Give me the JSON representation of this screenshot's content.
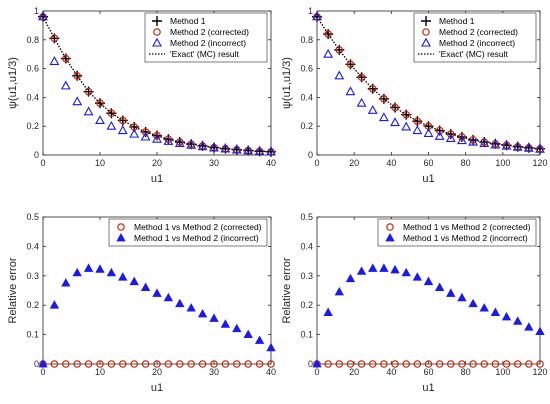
{
  "colors": {
    "method1": "#000000",
    "method2_corrected": "#cc2200",
    "method2_incorrect": "#1a1aee",
    "exact": "#000000",
    "axis": "#262626"
  },
  "chart_data": [
    {
      "type": "scatter",
      "xlabel": "u1",
      "ylabel": "ψ(u1,u1/3)",
      "xlim": [
        0,
        40
      ],
      "ylim": [
        0,
        1
      ],
      "xticks": [
        "0",
        "10",
        "20",
        "30",
        "40"
      ],
      "yticks": [
        "0",
        "0.2",
        "0.4",
        "0.6",
        "0.8",
        "1"
      ],
      "legend_position": "top-right",
      "legend": [
        "Method 1",
        "Method 2 (corrected)",
        "Method 2 (incorrect)",
        "'Exact' (MC) result"
      ],
      "series": [
        {
          "name": "Method 1",
          "marker": "plus",
          "x": [
            0,
            2,
            4,
            6,
            8,
            10,
            12,
            14,
            16,
            18,
            20,
            22,
            24,
            26,
            28,
            30,
            32,
            34,
            36,
            38,
            40
          ],
          "y": [
            0.96,
            0.81,
            0.67,
            0.55,
            0.44,
            0.36,
            0.29,
            0.24,
            0.195,
            0.16,
            0.135,
            0.11,
            0.09,
            0.075,
            0.063,
            0.052,
            0.044,
            0.037,
            0.031,
            0.026,
            0.022
          ]
        },
        {
          "name": "Method 2 (corrected)",
          "marker": "circle",
          "x": [
            0,
            2,
            4,
            6,
            8,
            10,
            12,
            14,
            16,
            18,
            20,
            22,
            24,
            26,
            28,
            30,
            32,
            34,
            36,
            38,
            40
          ],
          "y": [
            0.96,
            0.81,
            0.67,
            0.55,
            0.44,
            0.36,
            0.29,
            0.24,
            0.195,
            0.16,
            0.135,
            0.11,
            0.09,
            0.075,
            0.063,
            0.052,
            0.044,
            0.037,
            0.031,
            0.026,
            0.022
          ]
        },
        {
          "name": "Method 2 (incorrect)",
          "marker": "triangle",
          "x": [
            0,
            2,
            4,
            6,
            8,
            10,
            12,
            14,
            16,
            18,
            20,
            22,
            24,
            26,
            28,
            30,
            32,
            34,
            36,
            38,
            40
          ],
          "y": [
            0.96,
            0.65,
            0.48,
            0.37,
            0.3,
            0.24,
            0.2,
            0.17,
            0.145,
            0.125,
            0.11,
            0.095,
            0.08,
            0.068,
            0.058,
            0.049,
            0.042,
            0.035,
            0.03,
            0.025,
            0.021
          ]
        },
        {
          "name": "'Exact' (MC) result",
          "marker": "line",
          "x": [
            0,
            2,
            4,
            6,
            8,
            10,
            12,
            14,
            16,
            18,
            20,
            22,
            24,
            26,
            28,
            30,
            32,
            34,
            36,
            38,
            40
          ],
          "y": [
            0.96,
            0.81,
            0.67,
            0.55,
            0.44,
            0.36,
            0.29,
            0.24,
            0.195,
            0.16,
            0.135,
            0.11,
            0.09,
            0.075,
            0.063,
            0.052,
            0.044,
            0.037,
            0.031,
            0.026,
            0.022
          ]
        }
      ]
    },
    {
      "type": "scatter",
      "xlabel": "u1",
      "ylabel": "ψ(u1,u1/3)",
      "xlim": [
        0,
        120
      ],
      "ylim": [
        0,
        1
      ],
      "xticks": [
        "0",
        "20",
        "40",
        "60",
        "80",
        "100",
        "120"
      ],
      "yticks": [
        "0",
        "0.2",
        "0.4",
        "0.6",
        "0.8",
        "1"
      ],
      "legend_position": "top-right",
      "legend": [
        "Method 1",
        "Method 2 (corrected)",
        "Method 2 (incorrect)",
        "'Exact' (MC) result"
      ],
      "series": [
        {
          "name": "Method 1",
          "marker": "plus",
          "x": [
            0,
            6,
            12,
            18,
            24,
            30,
            36,
            42,
            48,
            54,
            60,
            66,
            72,
            78,
            84,
            90,
            96,
            102,
            108,
            114,
            120
          ],
          "y": [
            0.96,
            0.84,
            0.73,
            0.63,
            0.54,
            0.46,
            0.39,
            0.33,
            0.28,
            0.235,
            0.2,
            0.17,
            0.145,
            0.125,
            0.105,
            0.09,
            0.078,
            0.068,
            0.058,
            0.05,
            0.043
          ]
        },
        {
          "name": "Method 2 (corrected)",
          "marker": "circle",
          "x": [
            0,
            6,
            12,
            18,
            24,
            30,
            36,
            42,
            48,
            54,
            60,
            66,
            72,
            78,
            84,
            90,
            96,
            102,
            108,
            114,
            120
          ],
          "y": [
            0.96,
            0.84,
            0.73,
            0.63,
            0.54,
            0.46,
            0.39,
            0.33,
            0.28,
            0.235,
            0.2,
            0.17,
            0.145,
            0.125,
            0.105,
            0.09,
            0.078,
            0.068,
            0.058,
            0.05,
            0.043
          ]
        },
        {
          "name": "Method 2 (incorrect)",
          "marker": "triangle",
          "x": [
            0,
            6,
            12,
            18,
            24,
            30,
            36,
            42,
            48,
            54,
            60,
            66,
            72,
            78,
            84,
            90,
            96,
            102,
            108,
            114,
            120
          ],
          "y": [
            0.96,
            0.7,
            0.55,
            0.44,
            0.36,
            0.31,
            0.26,
            0.225,
            0.195,
            0.17,
            0.15,
            0.13,
            0.115,
            0.1,
            0.09,
            0.08,
            0.07,
            0.062,
            0.054,
            0.047,
            0.04
          ]
        },
        {
          "name": "'Exact' (MC) result",
          "marker": "line",
          "x": [
            0,
            6,
            12,
            18,
            24,
            30,
            36,
            42,
            48,
            54,
            60,
            66,
            72,
            78,
            84,
            90,
            96,
            102,
            108,
            114,
            120
          ],
          "y": [
            0.96,
            0.84,
            0.73,
            0.63,
            0.54,
            0.46,
            0.39,
            0.33,
            0.28,
            0.235,
            0.2,
            0.17,
            0.145,
            0.125,
            0.105,
            0.09,
            0.078,
            0.068,
            0.058,
            0.05,
            0.043
          ]
        }
      ]
    },
    {
      "type": "scatter",
      "xlabel": "u1",
      "ylabel": "Relative error",
      "xlim": [
        0,
        40
      ],
      "ylim": [
        0,
        0.5
      ],
      "xticks": [
        "0",
        "10",
        "20",
        "30",
        "40"
      ],
      "yticks": [
        "0",
        "0.1",
        "0.2",
        "0.3",
        "0.4",
        "0.5"
      ],
      "legend_position": "top-right",
      "legend": [
        "Method 1 vs Method 2 (corrected)",
        "Method 1 vs Method 2 (incorrect)"
      ],
      "series": [
        {
          "name": "Method 1 vs Method 2 (corrected)",
          "marker": "circle",
          "x": [
            0,
            2,
            4,
            6,
            8,
            10,
            12,
            14,
            16,
            18,
            20,
            22,
            24,
            26,
            28,
            30,
            32,
            34,
            36,
            38,
            40
          ],
          "y": [
            0,
            0,
            0,
            0,
            0,
            0,
            0,
            0,
            0,
            0,
            0,
            0,
            0,
            0,
            0,
            0,
            0,
            0,
            0,
            0,
            0
          ]
        },
        {
          "name": "Method 1 vs Method 2 (incorrect)",
          "marker": "triangle-filled",
          "x": [
            0,
            2,
            4,
            6,
            8,
            10,
            12,
            14,
            16,
            18,
            20,
            22,
            24,
            26,
            28,
            30,
            32,
            34,
            36,
            38,
            40
          ],
          "y": [
            0,
            0.2,
            0.275,
            0.31,
            0.325,
            0.322,
            0.31,
            0.295,
            0.28,
            0.26,
            0.24,
            0.225,
            0.205,
            0.19,
            0.17,
            0.155,
            0.135,
            0.12,
            0.1,
            0.08,
            0.055
          ]
        }
      ]
    },
    {
      "type": "scatter",
      "xlabel": "u1",
      "ylabel": "Relative error",
      "xlim": [
        0,
        120
      ],
      "ylim": [
        0,
        0.5
      ],
      "xticks": [
        "0",
        "20",
        "40",
        "60",
        "80",
        "100",
        "120"
      ],
      "yticks": [
        "0",
        "0.1",
        "0.2",
        "0.3",
        "0.4",
        "0.5"
      ],
      "legend_position": "top-right",
      "legend": [
        "Method 1 vs Method 2 (corrected)",
        "Method 1 vs Method 2 (incorrect)"
      ],
      "series": [
        {
          "name": "Method 1 vs Method 2 (corrected)",
          "marker": "circle",
          "x": [
            0,
            6,
            12,
            18,
            24,
            30,
            36,
            42,
            48,
            54,
            60,
            66,
            72,
            78,
            84,
            90,
            96,
            102,
            108,
            114,
            120
          ],
          "y": [
            0,
            0,
            0,
            0,
            0,
            0,
            0,
            0,
            0,
            0,
            0,
            0,
            0,
            0,
            0,
            0,
            0,
            0,
            0,
            0,
            0
          ]
        },
        {
          "name": "Method 1 vs Method 2 (incorrect)",
          "marker": "triangle-filled",
          "x": [
            0,
            6,
            12,
            18,
            24,
            30,
            36,
            42,
            48,
            54,
            60,
            66,
            72,
            78,
            84,
            90,
            96,
            102,
            108,
            114,
            120
          ],
          "y": [
            0,
            0.175,
            0.245,
            0.29,
            0.315,
            0.325,
            0.325,
            0.32,
            0.31,
            0.295,
            0.28,
            0.26,
            0.24,
            0.225,
            0.205,
            0.19,
            0.175,
            0.16,
            0.145,
            0.125,
            0.11
          ]
        }
      ]
    }
  ]
}
